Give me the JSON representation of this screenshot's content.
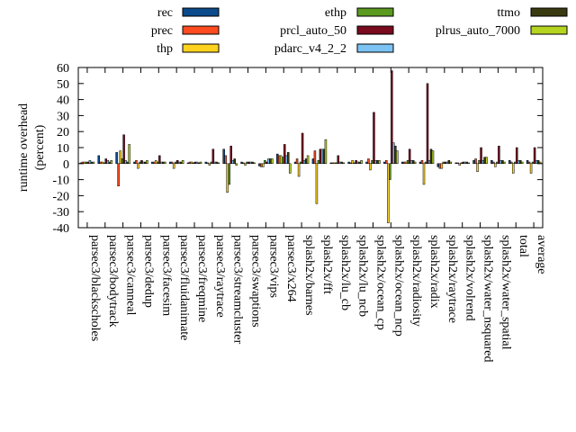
{
  "chart_data": {
    "type": "bar",
    "title": "",
    "xlabel": "",
    "ylabel": "runtime overhead\n(percent)",
    "ylim": [
      -40,
      60
    ],
    "yticks": [
      -40,
      -30,
      -20,
      -10,
      0,
      10,
      20,
      30,
      40,
      50,
      60
    ],
    "grid": false,
    "legend_position": "top",
    "categories": [
      "parsec3/blackscholes",
      "parsec3/bodytrack",
      "parsec3/canneal",
      "parsec3/dedup",
      "parsec3/facesim",
      "parsec3/fluidanimate",
      "parsec3/freqmine",
      "parsec3/raytrace",
      "parsec3/streamcluster",
      "parsec3/swaptions",
      "parsec3/vips",
      "parsec3/x264",
      "splash2x/barnes",
      "splash2x/fft",
      "splash2x/lu_cb",
      "splash2x/lu_ncb",
      "splash2x/ocean_cp",
      "splash2x/ocean_ncp",
      "splash2x/radiosity",
      "splash2x/radix",
      "splash2x/raytrace",
      "splash2x/volrend",
      "splash2x/water_nsquared",
      "splash2x/water_spatial",
      "total",
      "average"
    ],
    "series": [
      {
        "name": "rec",
        "color": "#0b4a8b",
        "values": [
          0.5,
          5,
          7,
          1,
          1,
          1,
          0.5,
          1,
          9,
          1,
          -1.5,
          6,
          1,
          3,
          0.5,
          1,
          1,
          1,
          1,
          1,
          -2,
          0.5,
          2,
          2,
          2,
          2
        ]
      },
      {
        "name": "prec",
        "color": "#ff4b1f",
        "values": [
          1,
          1,
          -14,
          2,
          1,
          1,
          1,
          0.5,
          5,
          0.5,
          -2,
          5,
          3,
          8,
          0.5,
          0.5,
          3,
          2,
          1,
          2,
          -3,
          0.5,
          3,
          1,
          1,
          1
        ]
      },
      {
        "name": "thp",
        "color": "#ffd21f",
        "values": [
          1,
          1,
          8,
          -3,
          2,
          -3,
          1,
          -1,
          -18,
          -1,
          -2,
          5,
          -8,
          -25,
          0.5,
          2,
          -4,
          -37,
          1,
          -13,
          -3,
          -1,
          -5,
          -2,
          -6,
          -6
        ]
      },
      {
        "name": "ethp",
        "color": "#5a9a1f",
        "values": [
          1,
          0.5,
          3,
          1,
          1,
          1,
          0.5,
          1,
          -13,
          1,
          2,
          4,
          1,
          2,
          0.5,
          0.5,
          2,
          -10,
          2,
          1,
          1,
          0.5,
          2,
          1,
          1,
          1
        ]
      },
      {
        "name": "prcl_auto_50",
        "color": "#7a0a1e",
        "values": [
          1,
          3,
          18,
          2,
          5,
          2,
          1,
          9,
          11,
          1,
          1,
          12,
          19,
          9,
          5,
          2,
          32,
          58,
          9,
          50,
          1,
          1,
          10,
          11,
          10,
          10
        ]
      },
      {
        "name": "pdarc_v4_2_2",
        "color": "#7cc3f4",
        "values": [
          2,
          2,
          2,
          1,
          1,
          1,
          1,
          1,
          2,
          1,
          3,
          5,
          2,
          9,
          1,
          1,
          2,
          13,
          2,
          2,
          1,
          1,
          2,
          2,
          2,
          2
        ]
      },
      {
        "name": "ttmo",
        "color": "#3a3a10",
        "values": [
          1,
          1,
          1,
          1,
          1,
          1,
          0.5,
          1,
          3,
          1,
          3,
          7,
          3,
          9,
          1,
          1,
          2,
          11,
          2,
          9,
          2,
          1,
          4,
          2,
          2,
          2
        ]
      },
      {
        "name": "plrus_auto_7000",
        "color": "#b5d41f",
        "values": [
          1,
          2,
          12,
          2,
          1,
          2,
          1,
          0.5,
          -1,
          0.5,
          3,
          -6,
          5,
          15,
          0.5,
          2,
          2,
          8,
          1,
          8,
          1,
          0.5,
          4,
          1,
          1,
          1
        ]
      }
    ]
  }
}
